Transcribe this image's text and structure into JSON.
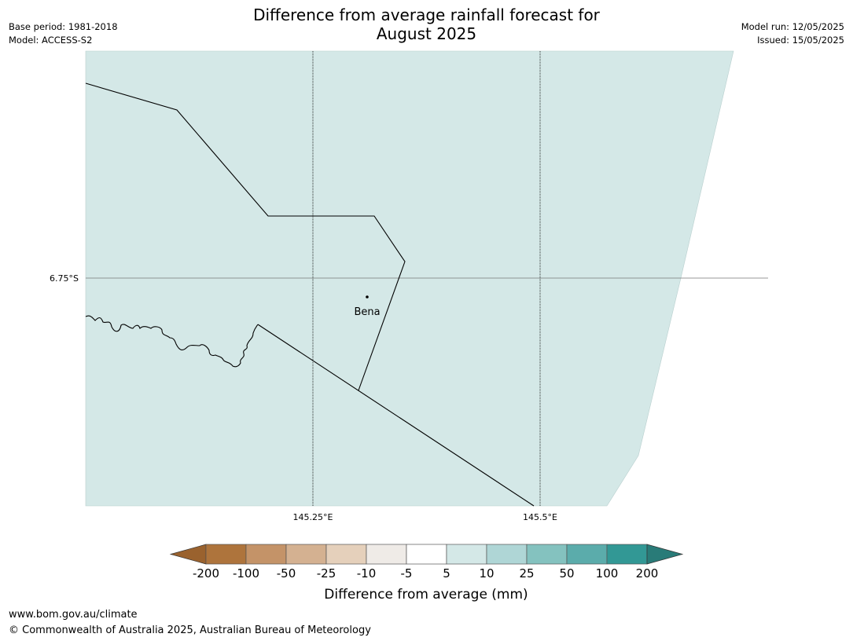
{
  "title": {
    "line1": "Difference from average rainfall forecast for",
    "line2": "August 2025"
  },
  "meta_left": {
    "base_period": "Base period: 1981-2018",
    "model": "Model: ACCESS-S2"
  },
  "meta_right": {
    "model_run": "Model run: 12/05/2025",
    "issued": "Issued: 15/05/2025"
  },
  "map": {
    "latitude_labels": [
      "6.75°S"
    ],
    "longitude_labels": [
      "145.25°E",
      "145.5°E"
    ],
    "place": {
      "name": "Bena"
    },
    "fill_category": "5 to 10"
  },
  "legend": {
    "tick_labels": [
      "-200",
      "-100",
      "-50",
      "-25",
      "-10",
      "-5",
      "5",
      "10",
      "25",
      "50",
      "100",
      "200"
    ],
    "colors": [
      "#9a622e",
      "#ae743c",
      "#c49368",
      "#d4b191",
      "#e5d0bb",
      "#efebe7",
      "#ffffff",
      "#d4e8e7",
      "#afd6d6",
      "#84c2bf",
      "#5bacab",
      "#329895",
      "#297b78"
    ],
    "label": "Difference from average (mm)"
  },
  "footer": {
    "url": "www.bom.gov.au/climate",
    "copyright": "© Commonwealth of Australia 2025, Australian Bureau of Meteorology"
  }
}
